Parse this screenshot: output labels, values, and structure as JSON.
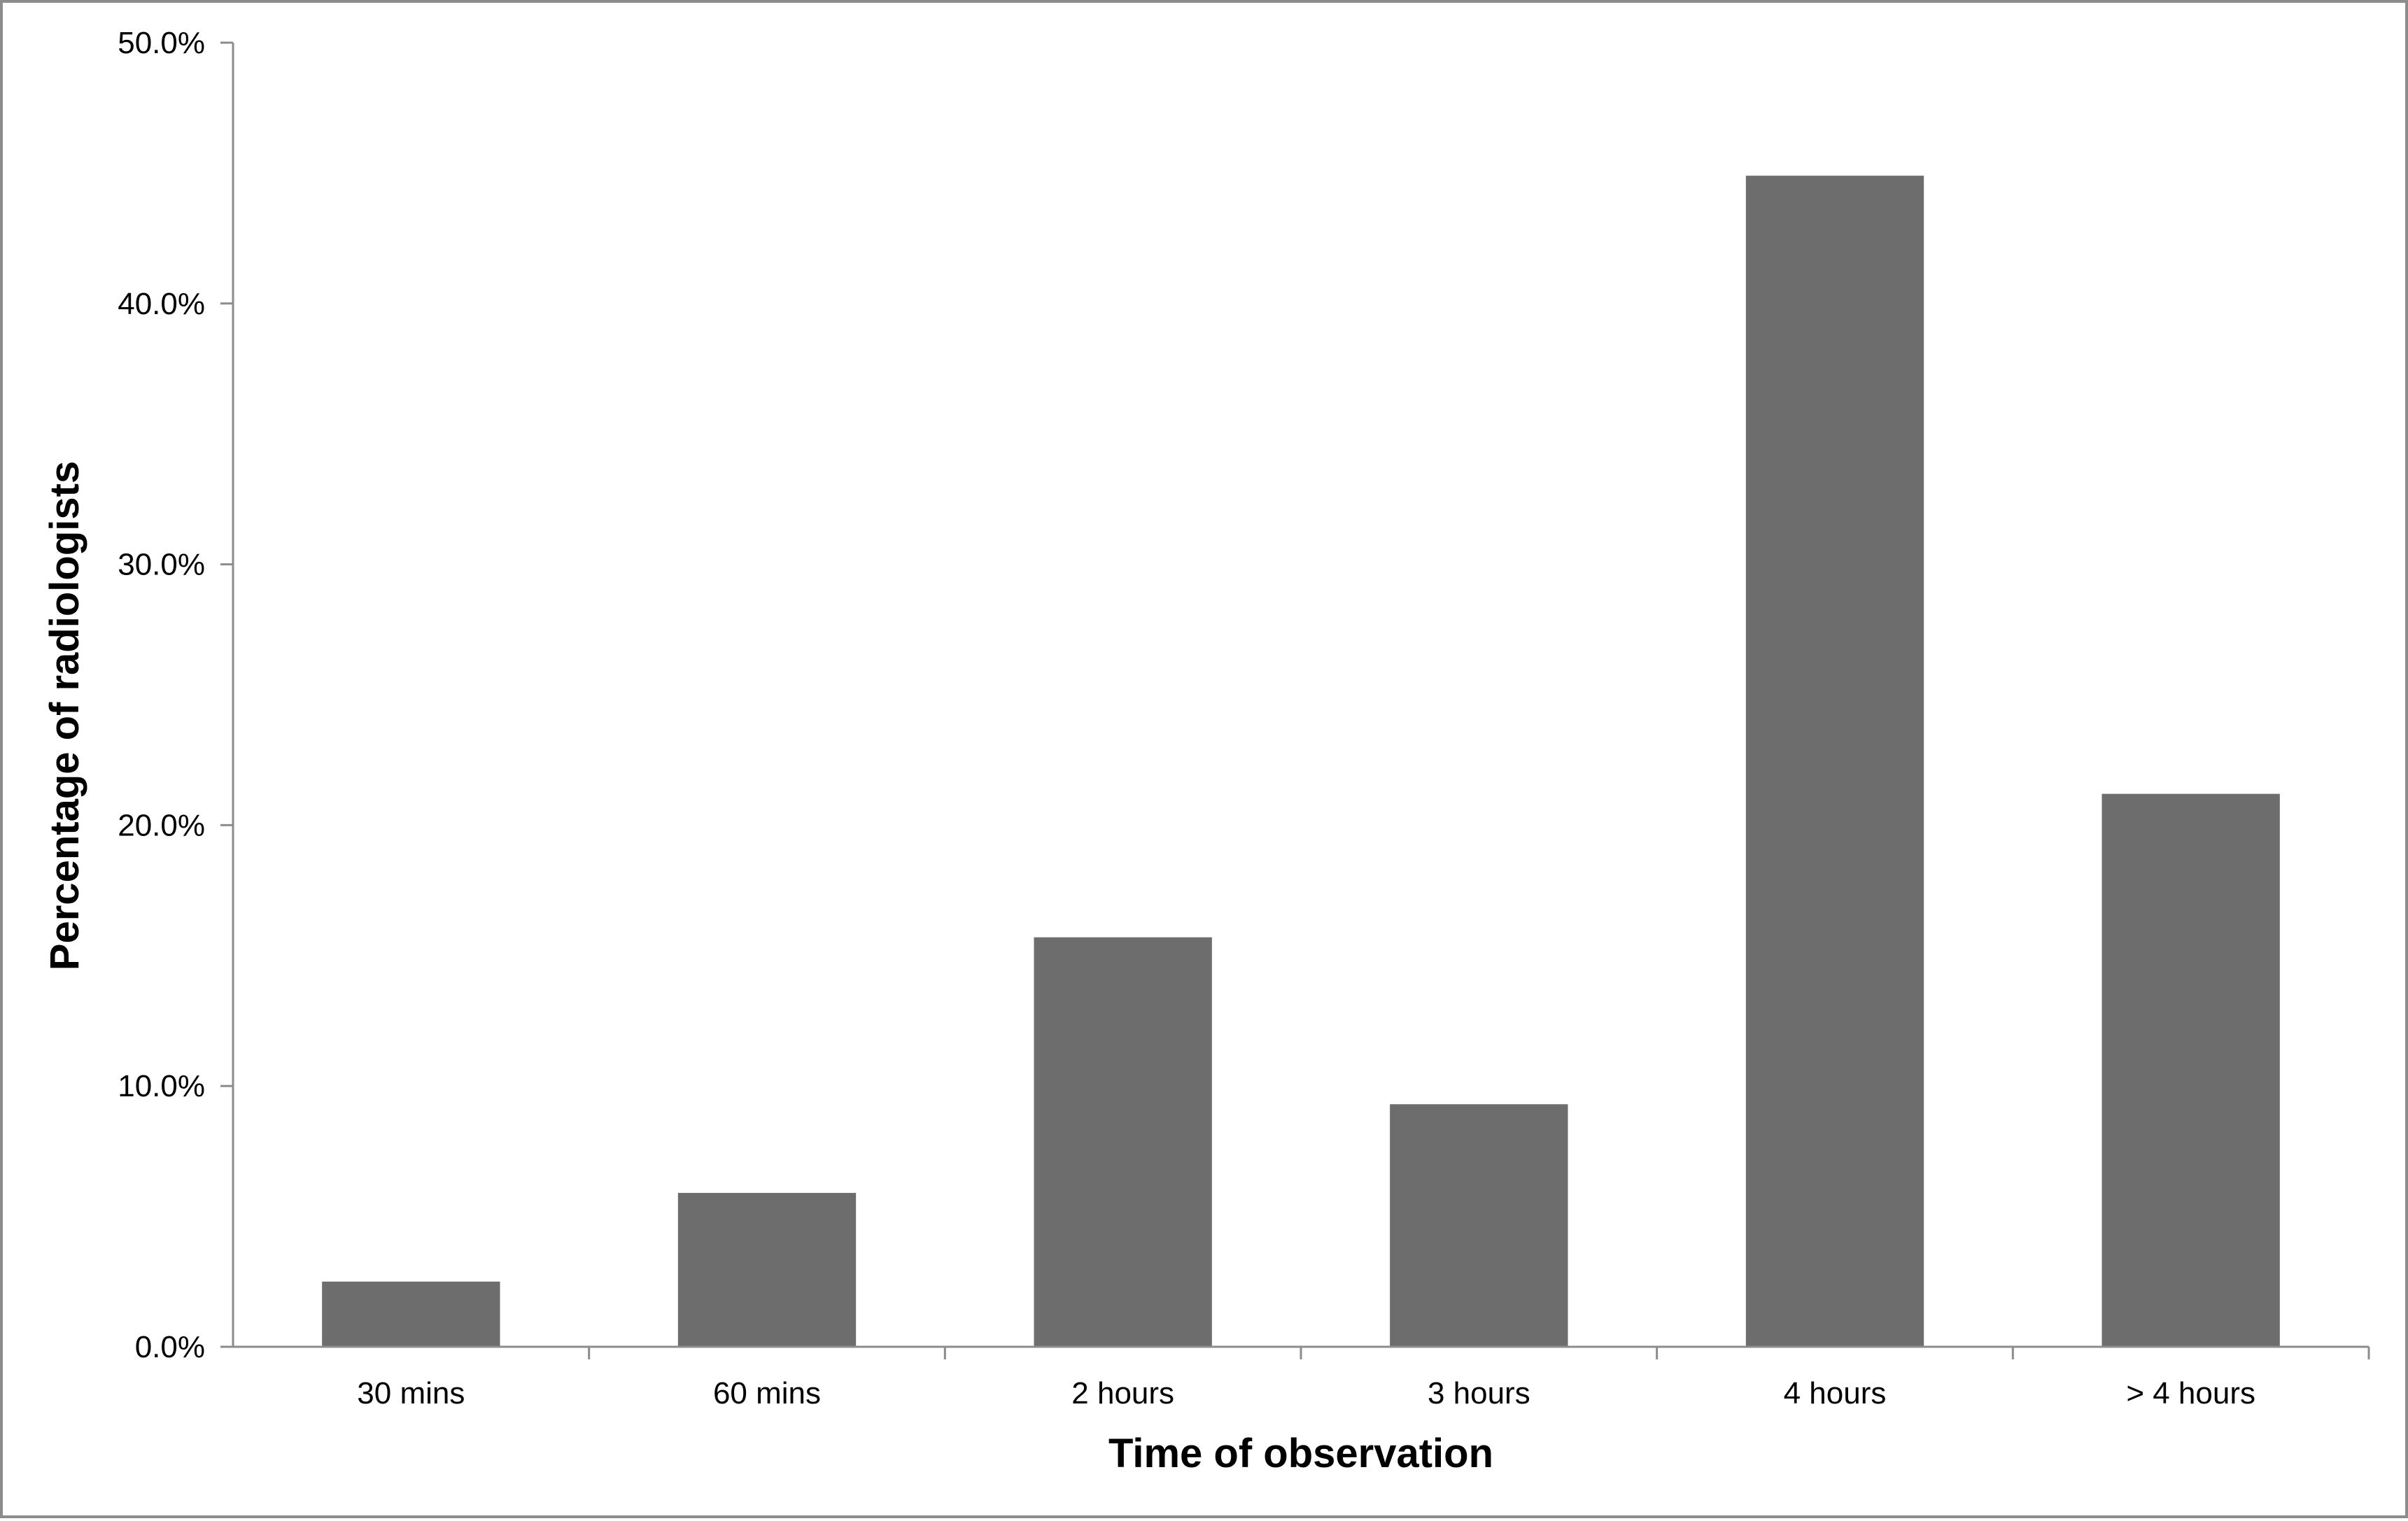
{
  "chart_data": {
    "type": "bar",
    "title": "",
    "xlabel": "Time of observation",
    "ylabel": "Percentage of radiologists",
    "categories": [
      "30 mins",
      "60 mins",
      "2 hours",
      "3 hours",
      "4 hours",
      "> 4 hours"
    ],
    "values": [
      2.5,
      5.9,
      15.7,
      9.3,
      44.9,
      21.2
    ],
    "ylim": [
      0,
      50
    ],
    "yticks": [
      0,
      10,
      20,
      30,
      40,
      50
    ],
    "ytick_labels": [
      "0.0%",
      "10.0%",
      "20.0%",
      "30.0%",
      "40.0%",
      "50.0%"
    ],
    "grid": false,
    "legend": "none",
    "bar_color": "#6d6d6d",
    "axis_color": "#8c8c8c"
  }
}
